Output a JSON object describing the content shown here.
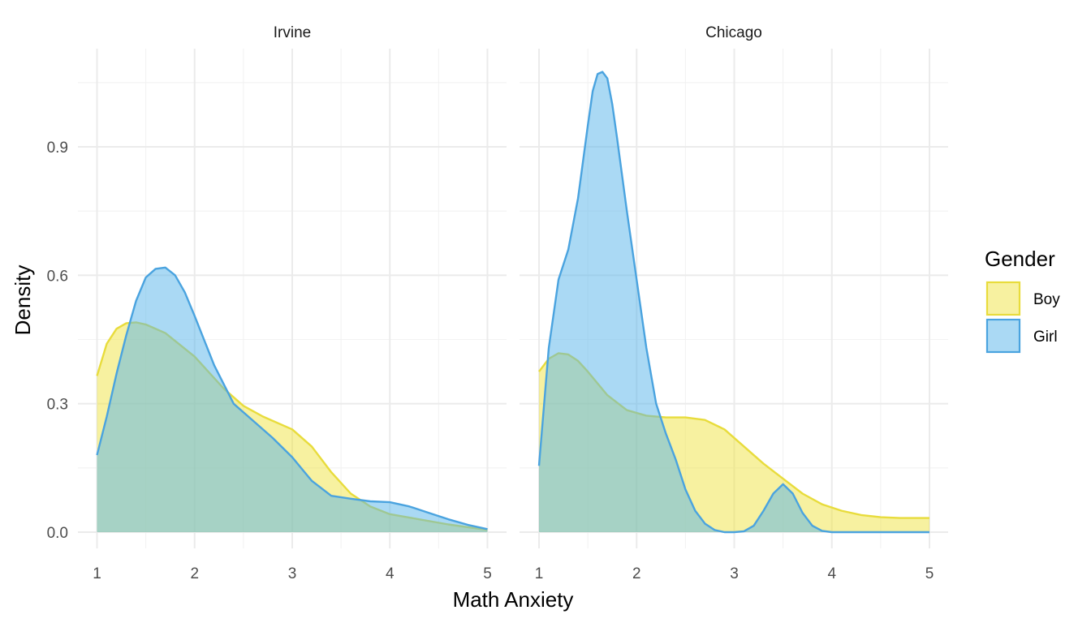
{
  "chart_data": {
    "type": "area",
    "xlabel": "Math Anxiety",
    "ylabel": "Density",
    "xlim": [
      1,
      5
    ],
    "ylim": [
      0,
      1.08
    ],
    "x_ticks": [
      "1",
      "2",
      "3",
      "4",
      "5"
    ],
    "y_ticks": [
      "0.0",
      "0.3",
      "0.6",
      "0.9"
    ],
    "grid": true,
    "legend": {
      "title": "Gender",
      "placement": "right",
      "entries": [
        {
          "label": "Boy",
          "fill": "#f0e442",
          "stroke": "#e8dc3c"
        },
        {
          "label": "Girl",
          "fill": "#56b4e9",
          "stroke": "#4aa3df"
        }
      ]
    },
    "panels": [
      {
        "title": "Irvine",
        "series": [
          {
            "name": "Boy",
            "x": [
              1.0,
              1.1,
              1.2,
              1.3,
              1.4,
              1.5,
              1.7,
              2.0,
              2.3,
              2.5,
              2.7,
              3.0,
              3.2,
              3.4,
              3.6,
              3.8,
              4.0,
              4.3,
              4.6,
              5.0
            ],
            "y": [
              0.365,
              0.44,
              0.475,
              0.488,
              0.49,
              0.485,
              0.465,
              0.41,
              0.335,
              0.295,
              0.27,
              0.24,
              0.2,
              0.14,
              0.09,
              0.06,
              0.042,
              0.03,
              0.018,
              0.005
            ]
          },
          {
            "name": "Girl",
            "x": [
              1.0,
              1.1,
              1.2,
              1.3,
              1.4,
              1.5,
              1.6,
              1.7,
              1.8,
              1.9,
              2.0,
              2.2,
              2.4,
              2.6,
              2.8,
              3.0,
              3.2,
              3.4,
              3.6,
              3.8,
              4.0,
              4.2,
              4.4,
              4.6,
              4.8,
              5.0
            ],
            "y": [
              0.18,
              0.27,
              0.37,
              0.46,
              0.54,
              0.595,
              0.615,
              0.618,
              0.6,
              0.56,
              0.505,
              0.39,
              0.3,
              0.26,
              0.22,
              0.175,
              0.12,
              0.085,
              0.078,
              0.072,
              0.07,
              0.06,
              0.045,
              0.03,
              0.017,
              0.007
            ]
          }
        ]
      },
      {
        "title": "Chicago",
        "series": [
          {
            "name": "Boy",
            "x": [
              1.0,
              1.1,
              1.2,
              1.3,
              1.4,
              1.5,
              1.7,
              1.9,
              2.1,
              2.3,
              2.5,
              2.7,
              2.9,
              3.1,
              3.3,
              3.5,
              3.7,
              3.9,
              4.1,
              4.3,
              4.5,
              4.7,
              5.0
            ],
            "y": [
              0.375,
              0.405,
              0.418,
              0.415,
              0.4,
              0.375,
              0.32,
              0.285,
              0.272,
              0.268,
              0.268,
              0.262,
              0.24,
              0.2,
              0.16,
              0.125,
              0.09,
              0.065,
              0.05,
              0.04,
              0.035,
              0.033,
              0.033
            ]
          },
          {
            "name": "Girl",
            "x": [
              1.0,
              1.1,
              1.2,
              1.3,
              1.4,
              1.5,
              1.55,
              1.6,
              1.65,
              1.7,
              1.75,
              1.8,
              1.9,
              2.0,
              2.1,
              2.2,
              2.3,
              2.4,
              2.5,
              2.6,
              2.7,
              2.8,
              2.9,
              3.0,
              3.1,
              3.2,
              3.3,
              3.4,
              3.5,
              3.6,
              3.7,
              3.8,
              3.9,
              4.0,
              4.5,
              5.0
            ],
            "y": [
              0.155,
              0.43,
              0.59,
              0.66,
              0.78,
              0.95,
              1.03,
              1.07,
              1.075,
              1.06,
              1.0,
              0.92,
              0.75,
              0.59,
              0.43,
              0.3,
              0.23,
              0.17,
              0.1,
              0.05,
              0.02,
              0.005,
              0.0,
              0.0,
              0.002,
              0.015,
              0.05,
              0.09,
              0.112,
              0.09,
              0.045,
              0.015,
              0.003,
              0.0,
              0.0,
              0.0
            ]
          }
        ]
      }
    ]
  },
  "colors": {
    "boy_fill": "#f0e442",
    "boy_stroke": "#e8dc3c",
    "girl_fill": "#56b4e9",
    "girl_stroke": "#4aa3df"
  }
}
